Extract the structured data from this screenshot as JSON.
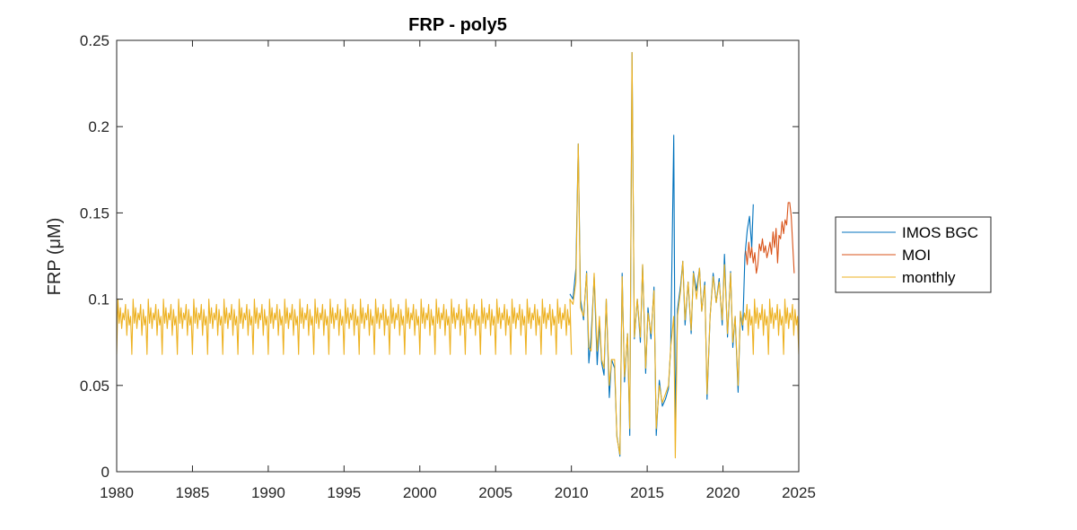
{
  "chart_data": {
    "type": "line",
    "title": "FRP - poly5",
    "xlabel": "",
    "ylabel": "FRP (μM)",
    "xlim": [
      1980,
      2025
    ],
    "ylim": [
      0,
      0.25
    ],
    "xticks": [
      1980,
      1985,
      1990,
      1995,
      2000,
      2005,
      2010,
      2015,
      2020,
      2025
    ],
    "xtick_labels": [
      "1980",
      "1985",
      "1990",
      "1995",
      "2000",
      "2005",
      "2010",
      "2015",
      "2020",
      "2025"
    ],
    "yticks": [
      0,
      0.05,
      0.1,
      0.15,
      0.2,
      0.25
    ],
    "ytick_labels": [
      "0",
      "0.05",
      "0.1",
      "0.15",
      "0.2",
      "0.25"
    ],
    "grid": false,
    "legend_position": "outside-right",
    "series": [
      {
        "name": "IMOS BGC",
        "color": "#0072BD",
        "points": [
          [
            2009.9,
            0.103
          ],
          [
            2010.1,
            0.1
          ],
          [
            2010.3,
            0.118
          ],
          [
            2010.45,
            0.19
          ],
          [
            2010.6,
            0.1
          ],
          [
            2010.8,
            0.088
          ],
          [
            2011.0,
            0.116
          ],
          [
            2011.15,
            0.063
          ],
          [
            2011.3,
            0.078
          ],
          [
            2011.5,
            0.113
          ],
          [
            2011.7,
            0.062
          ],
          [
            2011.85,
            0.086
          ],
          [
            2012.0,
            0.063
          ],
          [
            2012.15,
            0.056
          ],
          [
            2012.3,
            0.1
          ],
          [
            2012.5,
            0.043
          ],
          [
            2012.65,
            0.065
          ],
          [
            2012.85,
            0.06
          ],
          [
            2013.0,
            0.021
          ],
          [
            2013.2,
            0.009
          ],
          [
            2013.35,
            0.115
          ],
          [
            2013.5,
            0.052
          ],
          [
            2013.7,
            0.08
          ],
          [
            2013.85,
            0.021
          ],
          [
            2014.0,
            0.243
          ],
          [
            2014.15,
            0.077
          ],
          [
            2014.35,
            0.1
          ],
          [
            2014.55,
            0.075
          ],
          [
            2014.7,
            0.12
          ],
          [
            2014.9,
            0.057
          ],
          [
            2015.05,
            0.095
          ],
          [
            2015.25,
            0.077
          ],
          [
            2015.45,
            0.107
          ],
          [
            2015.6,
            0.021
          ],
          [
            2015.8,
            0.053
          ],
          [
            2016.0,
            0.038
          ],
          [
            2016.2,
            0.042
          ],
          [
            2016.4,
            0.048
          ],
          [
            2016.55,
            0.072
          ],
          [
            2016.75,
            0.195
          ],
          [
            2016.85,
            0.03
          ],
          [
            2017.0,
            0.094
          ],
          [
            2017.2,
            0.108
          ],
          [
            2017.35,
            0.122
          ],
          [
            2017.5,
            0.085
          ],
          [
            2017.7,
            0.11
          ],
          [
            2017.9,
            0.08
          ],
          [
            2018.05,
            0.116
          ],
          [
            2018.25,
            0.105
          ],
          [
            2018.45,
            0.118
          ],
          [
            2018.6,
            0.093
          ],
          [
            2018.8,
            0.11
          ],
          [
            2018.95,
            0.042
          ],
          [
            2019.15,
            0.09
          ],
          [
            2019.35,
            0.115
          ],
          [
            2019.55,
            0.098
          ],
          [
            2019.75,
            0.112
          ],
          [
            2019.95,
            0.085
          ],
          [
            2020.1,
            0.126
          ],
          [
            2020.3,
            0.078
          ],
          [
            2020.5,
            0.116
          ],
          [
            2020.65,
            0.072
          ],
          [
            2020.8,
            0.09
          ],
          [
            2021.0,
            0.046
          ],
          [
            2021.15,
            0.093
          ],
          [
            2021.3,
            0.082
          ],
          [
            2021.45,
            0.125
          ],
          [
            2021.6,
            0.14
          ],
          [
            2021.75,
            0.148
          ],
          [
            2021.9,
            0.13
          ],
          [
            2022.0,
            0.155
          ]
        ]
      },
      {
        "name": "MOI",
        "color": "#D95319",
        "points": [
          [
            2021.5,
            0.128
          ],
          [
            2021.6,
            0.12
          ],
          [
            2021.7,
            0.133
          ],
          [
            2021.8,
            0.124
          ],
          [
            2021.9,
            0.13
          ],
          [
            2022.0,
            0.121
          ],
          [
            2022.1,
            0.127
          ],
          [
            2022.2,
            0.115
          ],
          [
            2022.3,
            0.12
          ],
          [
            2022.4,
            0.132
          ],
          [
            2022.5,
            0.128
          ],
          [
            2022.6,
            0.135
          ],
          [
            2022.7,
            0.127
          ],
          [
            2022.8,
            0.131
          ],
          [
            2022.9,
            0.124
          ],
          [
            2023.0,
            0.128
          ],
          [
            2023.1,
            0.133
          ],
          [
            2023.2,
            0.126
          ],
          [
            2023.3,
            0.139
          ],
          [
            2023.4,
            0.13
          ],
          [
            2023.5,
            0.141
          ],
          [
            2023.6,
            0.121
          ],
          [
            2023.7,
            0.137
          ],
          [
            2023.8,
            0.135
          ],
          [
            2023.9,
            0.145
          ],
          [
            2024.0,
            0.138
          ],
          [
            2024.1,
            0.146
          ],
          [
            2024.2,
            0.143
          ],
          [
            2024.3,
            0.156
          ],
          [
            2024.4,
            0.156
          ],
          [
            2024.5,
            0.148
          ],
          [
            2024.6,
            0.132
          ],
          [
            2024.7,
            0.115
          ]
        ]
      },
      {
        "name": "monthly",
        "color": "#EDB120",
        "climatology": [
          0.068,
          0.1,
          0.086,
          0.095,
          0.083,
          0.092,
          0.088,
          0.097,
          0.079,
          0.094,
          0.085,
          0.09
        ],
        "climatology_range": [
          1980,
          2010
        ],
        "points": [
          [
            2009.9,
            0.1
          ],
          [
            2010.1,
            0.097
          ],
          [
            2010.3,
            0.11
          ],
          [
            2010.45,
            0.19
          ],
          [
            2010.6,
            0.095
          ],
          [
            2010.8,
            0.09
          ],
          [
            2011.0,
            0.115
          ],
          [
            2011.15,
            0.072
          ],
          [
            2011.3,
            0.07
          ],
          [
            2011.5,
            0.115
          ],
          [
            2011.7,
            0.07
          ],
          [
            2011.85,
            0.09
          ],
          [
            2012.0,
            0.065
          ],
          [
            2012.15,
            0.06
          ],
          [
            2012.3,
            0.1
          ],
          [
            2012.5,
            0.05
          ],
          [
            2012.65,
            0.065
          ],
          [
            2012.85,
            0.065
          ],
          [
            2013.0,
            0.02
          ],
          [
            2013.2,
            0.01
          ],
          [
            2013.35,
            0.113
          ],
          [
            2013.5,
            0.055
          ],
          [
            2013.7,
            0.08
          ],
          [
            2013.85,
            0.025
          ],
          [
            2014.0,
            0.243
          ],
          [
            2014.15,
            0.078
          ],
          [
            2014.35,
            0.1
          ],
          [
            2014.55,
            0.078
          ],
          [
            2014.7,
            0.12
          ],
          [
            2014.9,
            0.06
          ],
          [
            2015.05,
            0.092
          ],
          [
            2015.25,
            0.08
          ],
          [
            2015.45,
            0.105
          ],
          [
            2015.6,
            0.025
          ],
          [
            2015.8,
            0.05
          ],
          [
            2016.0,
            0.04
          ],
          [
            2016.2,
            0.045
          ],
          [
            2016.4,
            0.05
          ],
          [
            2016.55,
            0.072
          ],
          [
            2016.75,
            0.09
          ],
          [
            2016.85,
            0.008
          ],
          [
            2017.0,
            0.09
          ],
          [
            2017.2,
            0.105
          ],
          [
            2017.35,
            0.122
          ],
          [
            2017.5,
            0.088
          ],
          [
            2017.7,
            0.11
          ],
          [
            2017.9,
            0.082
          ],
          [
            2018.05,
            0.115
          ],
          [
            2018.25,
            0.1
          ],
          [
            2018.45,
            0.118
          ],
          [
            2018.6,
            0.093
          ],
          [
            2018.8,
            0.108
          ],
          [
            2018.95,
            0.045
          ],
          [
            2019.15,
            0.09
          ],
          [
            2019.35,
            0.113
          ],
          [
            2019.55,
            0.098
          ],
          [
            2019.75,
            0.11
          ],
          [
            2019.95,
            0.088
          ],
          [
            2020.1,
            0.12
          ],
          [
            2020.3,
            0.08
          ],
          [
            2020.5,
            0.115
          ],
          [
            2020.65,
            0.075
          ],
          [
            2020.8,
            0.09
          ],
          [
            2021.0,
            0.05
          ],
          [
            2021.15,
            0.093
          ],
          [
            2021.3,
            0.085
          ]
        ],
        "tail_climatology_range": [
          2021.4,
          2025
        ]
      }
    ]
  }
}
